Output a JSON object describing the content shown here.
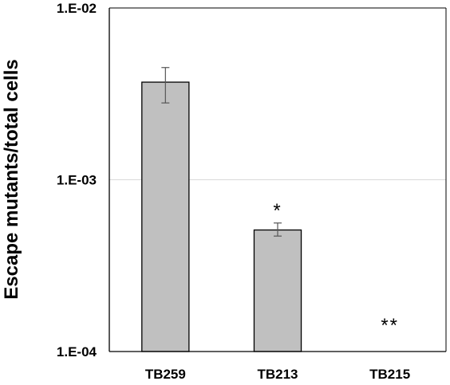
{
  "chart_data": {
    "type": "bar",
    "title": "",
    "xlabel": "",
    "ylabel": "Escape mutants/total cells",
    "y_scale": "log",
    "ylim": [
      0.0001,
      0.01
    ],
    "yticks": [
      {
        "value": 0.01,
        "label": "1.E-02"
      },
      {
        "value": 0.001,
        "label": "1.E-03"
      },
      {
        "value": 0.0001,
        "label": "1.E-04"
      }
    ],
    "categories": [
      "TB259",
      "TB213",
      "TB215"
    ],
    "values": [
      0.0037,
      0.00051,
      null
    ],
    "error_bars": [
      {
        "low": 0.0028,
        "high": 0.0045
      },
      {
        "low": 0.00047,
        "high": 0.00056
      },
      null
    ],
    "annotations": [
      "",
      "*",
      "**"
    ],
    "grid": "horizontal",
    "bar_color": "#c0c0c0",
    "bar_edge_color": "#000000"
  }
}
